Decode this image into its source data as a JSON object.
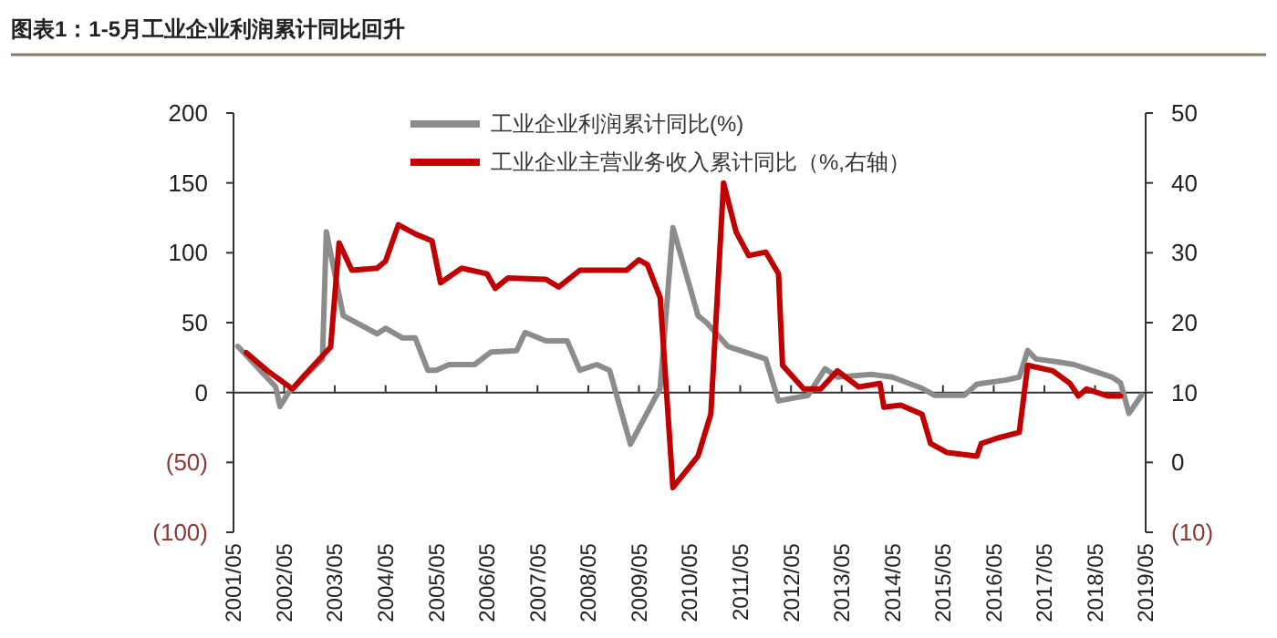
{
  "chart_data": {
    "type": "line",
    "title": "图表1：1-5月工业企业利润累计同比回升",
    "xlim": [
      "2001-05",
      "2019-05"
    ],
    "xticks": [
      {
        "value": "2001-05",
        "label": "2001/05"
      },
      {
        "value": "2002-05",
        "label": "2002/05"
      },
      {
        "value": "2003-05",
        "label": "2003/05"
      },
      {
        "value": "2004-05",
        "label": "2004/05"
      },
      {
        "value": "2005-05",
        "label": "2005/05"
      },
      {
        "value": "2006-05",
        "label": "2006/05"
      },
      {
        "value": "2007-05",
        "label": "2007/05"
      },
      {
        "value": "2008-05",
        "label": "2008/05"
      },
      {
        "value": "2009-05",
        "label": "2009/05"
      },
      {
        "value": "2010-05",
        "label": "2010/05"
      },
      {
        "value": "2011-05",
        "label": "2011/05"
      },
      {
        "value": "2012-05",
        "label": "2012/05"
      },
      {
        "value": "2013-05",
        "label": "2013/05"
      },
      {
        "value": "2014-05",
        "label": "2014/05"
      },
      {
        "value": "2015-05",
        "label": "2015/05"
      },
      {
        "value": "2016-05",
        "label": "2016/05"
      },
      {
        "value": "2017-05",
        "label": "2017/05"
      },
      {
        "value": "2018-05",
        "label": "2018/05"
      },
      {
        "value": "2019-05",
        "label": "2019/05"
      }
    ],
    "ylim": [
      -100,
      200
    ],
    "yticks": [
      {
        "value": -100,
        "label": "(100)"
      },
      {
        "value": -50,
        "label": "(50)"
      },
      0,
      50,
      100,
      150,
      200
    ],
    "y2lim": [
      -10,
      50
    ],
    "y2ticks": [
      {
        "value": -10,
        "label": "(10)"
      },
      0,
      10,
      20,
      30,
      40,
      50
    ],
    "legend": "top",
    "series": [
      {
        "name": "工业企业利润累计同比(%)",
        "color": "#8c8c8c",
        "x": [
          "2001-06",
          "2002-03",
          "2002-04",
          "2002-06",
          "2003-02",
          "2003-03",
          "2003-07",
          "2004-03",
          "2004-05",
          "2004-09",
          "2004-12",
          "2005-03",
          "2005-05",
          "2005-08",
          "2006-02",
          "2006-06",
          "2006-12",
          "2007-02",
          "2007-07",
          "2007-12",
          "2008-03",
          "2008-07",
          "2008-10",
          "2009-03",
          "2009-10",
          "2010-01",
          "2010-07",
          "2010-09",
          "2011-02",
          "2011-06",
          "2011-11",
          "2012-02",
          "2012-09",
          "2013-01",
          "2013-04",
          "2013-12",
          "2014-05",
          "2014-12",
          "2015-03",
          "2015-10",
          "2016-01",
          "2016-08",
          "2016-11",
          "2017-01",
          "2017-03",
          "2017-08",
          "2017-12",
          "2018-04",
          "2018-09",
          "2018-11",
          "2019-01",
          "2019-04"
        ],
        "values": [
          33,
          4,
          -10,
          0,
          24,
          115,
          55,
          42,
          46,
          39,
          39,
          16,
          16,
          20,
          20,
          29,
          30,
          43,
          37,
          37,
          16,
          20,
          16,
          -37,
          3,
          118,
          55,
          50,
          33,
          29,
          24,
          -6,
          -2,
          17,
          11,
          13,
          11,
          3,
          -2,
          -2,
          6,
          9,
          11,
          30,
          24,
          22,
          20,
          16,
          11,
          7,
          -15,
          -2
        ]
      },
      {
        "name": "工业企业主营业务收入累计同比（%,右轴）",
        "color": "#c00000",
        "axis": "y2",
        "x": [
          "2001-08",
          "2002-01",
          "2002-07",
          "2002-10",
          "2003-04",
          "2003-06",
          "2003-09",
          "2004-03",
          "2004-05",
          "2004-08",
          "2004-12",
          "2005-04",
          "2005-06",
          "2005-11",
          "2006-05",
          "2006-07",
          "2006-10",
          "2007-07",
          "2007-10",
          "2008-03",
          "2009-02",
          "2009-05",
          "2009-07",
          "2009-10",
          "2010-01",
          "2010-07",
          "2010-10",
          "2011-01",
          "2011-04",
          "2011-07",
          "2011-11",
          "2012-02",
          "2012-03",
          "2012-08",
          "2012-12",
          "2013-04",
          "2013-09",
          "2014-02",
          "2014-03",
          "2014-07",
          "2014-12",
          "2015-02",
          "2015-06",
          "2016-01",
          "2016-02",
          "2016-06",
          "2016-11",
          "2017-01",
          "2017-07",
          "2017-11",
          "2018-01",
          "2018-03",
          "2018-08",
          "2018-11"
        ],
        "values": [
          15.7,
          13.1,
          10.5,
          12.6,
          16.5,
          31.4,
          27.5,
          27.8,
          28.8,
          34,
          32.7,
          31.7,
          25.7,
          27.8,
          27,
          24.9,
          26.4,
          26.2,
          25.1,
          27.5,
          27.5,
          29,
          28.3,
          23.6,
          -3.6,
          0.9,
          6.9,
          40,
          33,
          29.6,
          30.1,
          27,
          13.9,
          10.5,
          10.5,
          13.1,
          10.8,
          11.3,
          7.9,
          8.2,
          6.9,
          2.7,
          1.4,
          0.9,
          2.7,
          3.5,
          4.3,
          13.9,
          13.1,
          11.3,
          9.5,
          10.5,
          9.5,
          9.5
        ]
      }
    ]
  }
}
